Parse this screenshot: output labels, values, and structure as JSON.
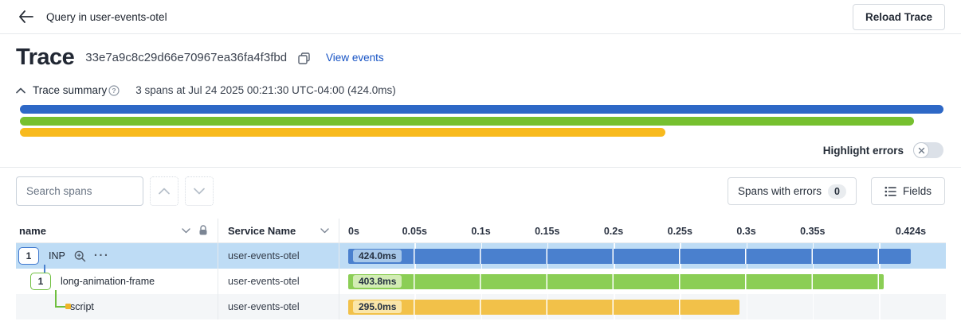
{
  "topbar": {
    "title": "Query in user-events-otel",
    "reload_button": "Reload Trace"
  },
  "trace_header": {
    "title": "Trace",
    "trace_id": "33e7a9c8c29d66e70967ea36fa4f3fbd",
    "view_events_link": "View events"
  },
  "summary": {
    "label": "Trace summary",
    "spans_info": "3 spans at Jul 24 2025 00:21:30 UTC-04:00 (424.0ms)",
    "bars": [
      {
        "name": "INP",
        "color": "#2e68c6",
        "pct": 100
      },
      {
        "name": "long-animation-frame",
        "color": "#76c02f",
        "pct": 96.8
      },
      {
        "name": "script",
        "color": "#f8ba1e",
        "pct": 69.9
      }
    ]
  },
  "highlight_errors": {
    "label": "Highlight errors",
    "enabled": false
  },
  "toolbar": {
    "search_placeholder": "Search spans",
    "spans_with_errors_label": "Spans with errors",
    "spans_with_errors_count": "0",
    "fields_label": "Fields"
  },
  "table": {
    "columns": {
      "name": "name",
      "service": "Service Name"
    },
    "axis": {
      "total_ms": 424,
      "ticks": [
        {
          "label": "0s",
          "ms": 0
        },
        {
          "label": "0.05s",
          "ms": 50
        },
        {
          "label": "0.1s",
          "ms": 100
        },
        {
          "label": "0.15s",
          "ms": 150
        },
        {
          "label": "0.2s",
          "ms": 200
        },
        {
          "label": "0.25s",
          "ms": 250
        },
        {
          "label": "0.3s",
          "ms": 300
        },
        {
          "label": "0.35s",
          "ms": 350
        },
        {
          "label": "",
          "ms": 400
        },
        {
          "label": "0.424s",
          "ms": 424
        }
      ]
    },
    "rows": [
      {
        "badge": "1",
        "name": "INP",
        "service": "user-events-otel",
        "duration": "424.0ms",
        "duration_ms": 424,
        "bar_color": "#4a80ce",
        "pill_color": "#a6c7e9",
        "selected": true
      },
      {
        "badge": "1",
        "name": "long-animation-frame",
        "service": "user-events-otel",
        "duration": "403.8ms",
        "duration_ms": 403.8,
        "bar_color": "#8bce55",
        "pill_color": "#d2ecb4",
        "selected": false
      },
      {
        "badge": "",
        "name": "script",
        "service": "user-events-otel",
        "duration": "295.0ms",
        "duration_ms": 295,
        "bar_color": "#f2c149",
        "pill_color": "#fae6a9",
        "selected": false
      }
    ]
  }
}
